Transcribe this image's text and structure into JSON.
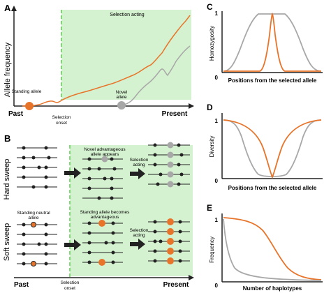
{
  "panels": {
    "A": {
      "letter": "A",
      "ylabel": "Allele frequency",
      "selection_acting": "Selection acting",
      "standing_allele": "Standing allele",
      "novel_allele_line1": "Novel",
      "novel_allele_line2": "allele",
      "selection_onset_line1": "Selection",
      "selection_onset_line2": "onset",
      "past": "Past",
      "present": "Present"
    },
    "B": {
      "letter": "B",
      "hard_sweep": "Hard sweep",
      "soft_sweep": "Soft sweep",
      "novel_adv_line1": "Novel advantageous",
      "novel_adv_line2": "allele appears",
      "selection_acting_line1": "Selection",
      "selection_acting_line2": "acting",
      "standing_neutral_line1": "Standing neutral",
      "standing_neutral_line2": "allele",
      "standing_becomes_line1": "Standing allele becomes",
      "standing_becomes_line2": "advantageous",
      "selection_acting2_line1": "Selection",
      "selection_acting2_line2": "acting",
      "past": "Past",
      "selection_onset_line1": "Selection",
      "selection_onset_line2": "onset",
      "present": "Present"
    },
    "C": {
      "letter": "C",
      "ylabel": "Homozygosity",
      "xlabel": "Positions from the selected allele",
      "y_top": "1",
      "y_bottom": "0"
    },
    "D": {
      "letter": "D",
      "ylabel": "Diversity",
      "xlabel": "Positions from the selected allele",
      "y_top": "1",
      "y_bottom": "0"
    },
    "E": {
      "letter": "E",
      "ylabel": "Frequency",
      "xlabel": "Number of haplotypes",
      "y_top": "1",
      "y_bottom": "0"
    }
  },
  "colors": {
    "orange": "#e8742a",
    "gray": "#a8a8a8",
    "green_bg": "#d5f2d0",
    "green_line": "#5bcf4a",
    "dark": "#222222"
  }
}
